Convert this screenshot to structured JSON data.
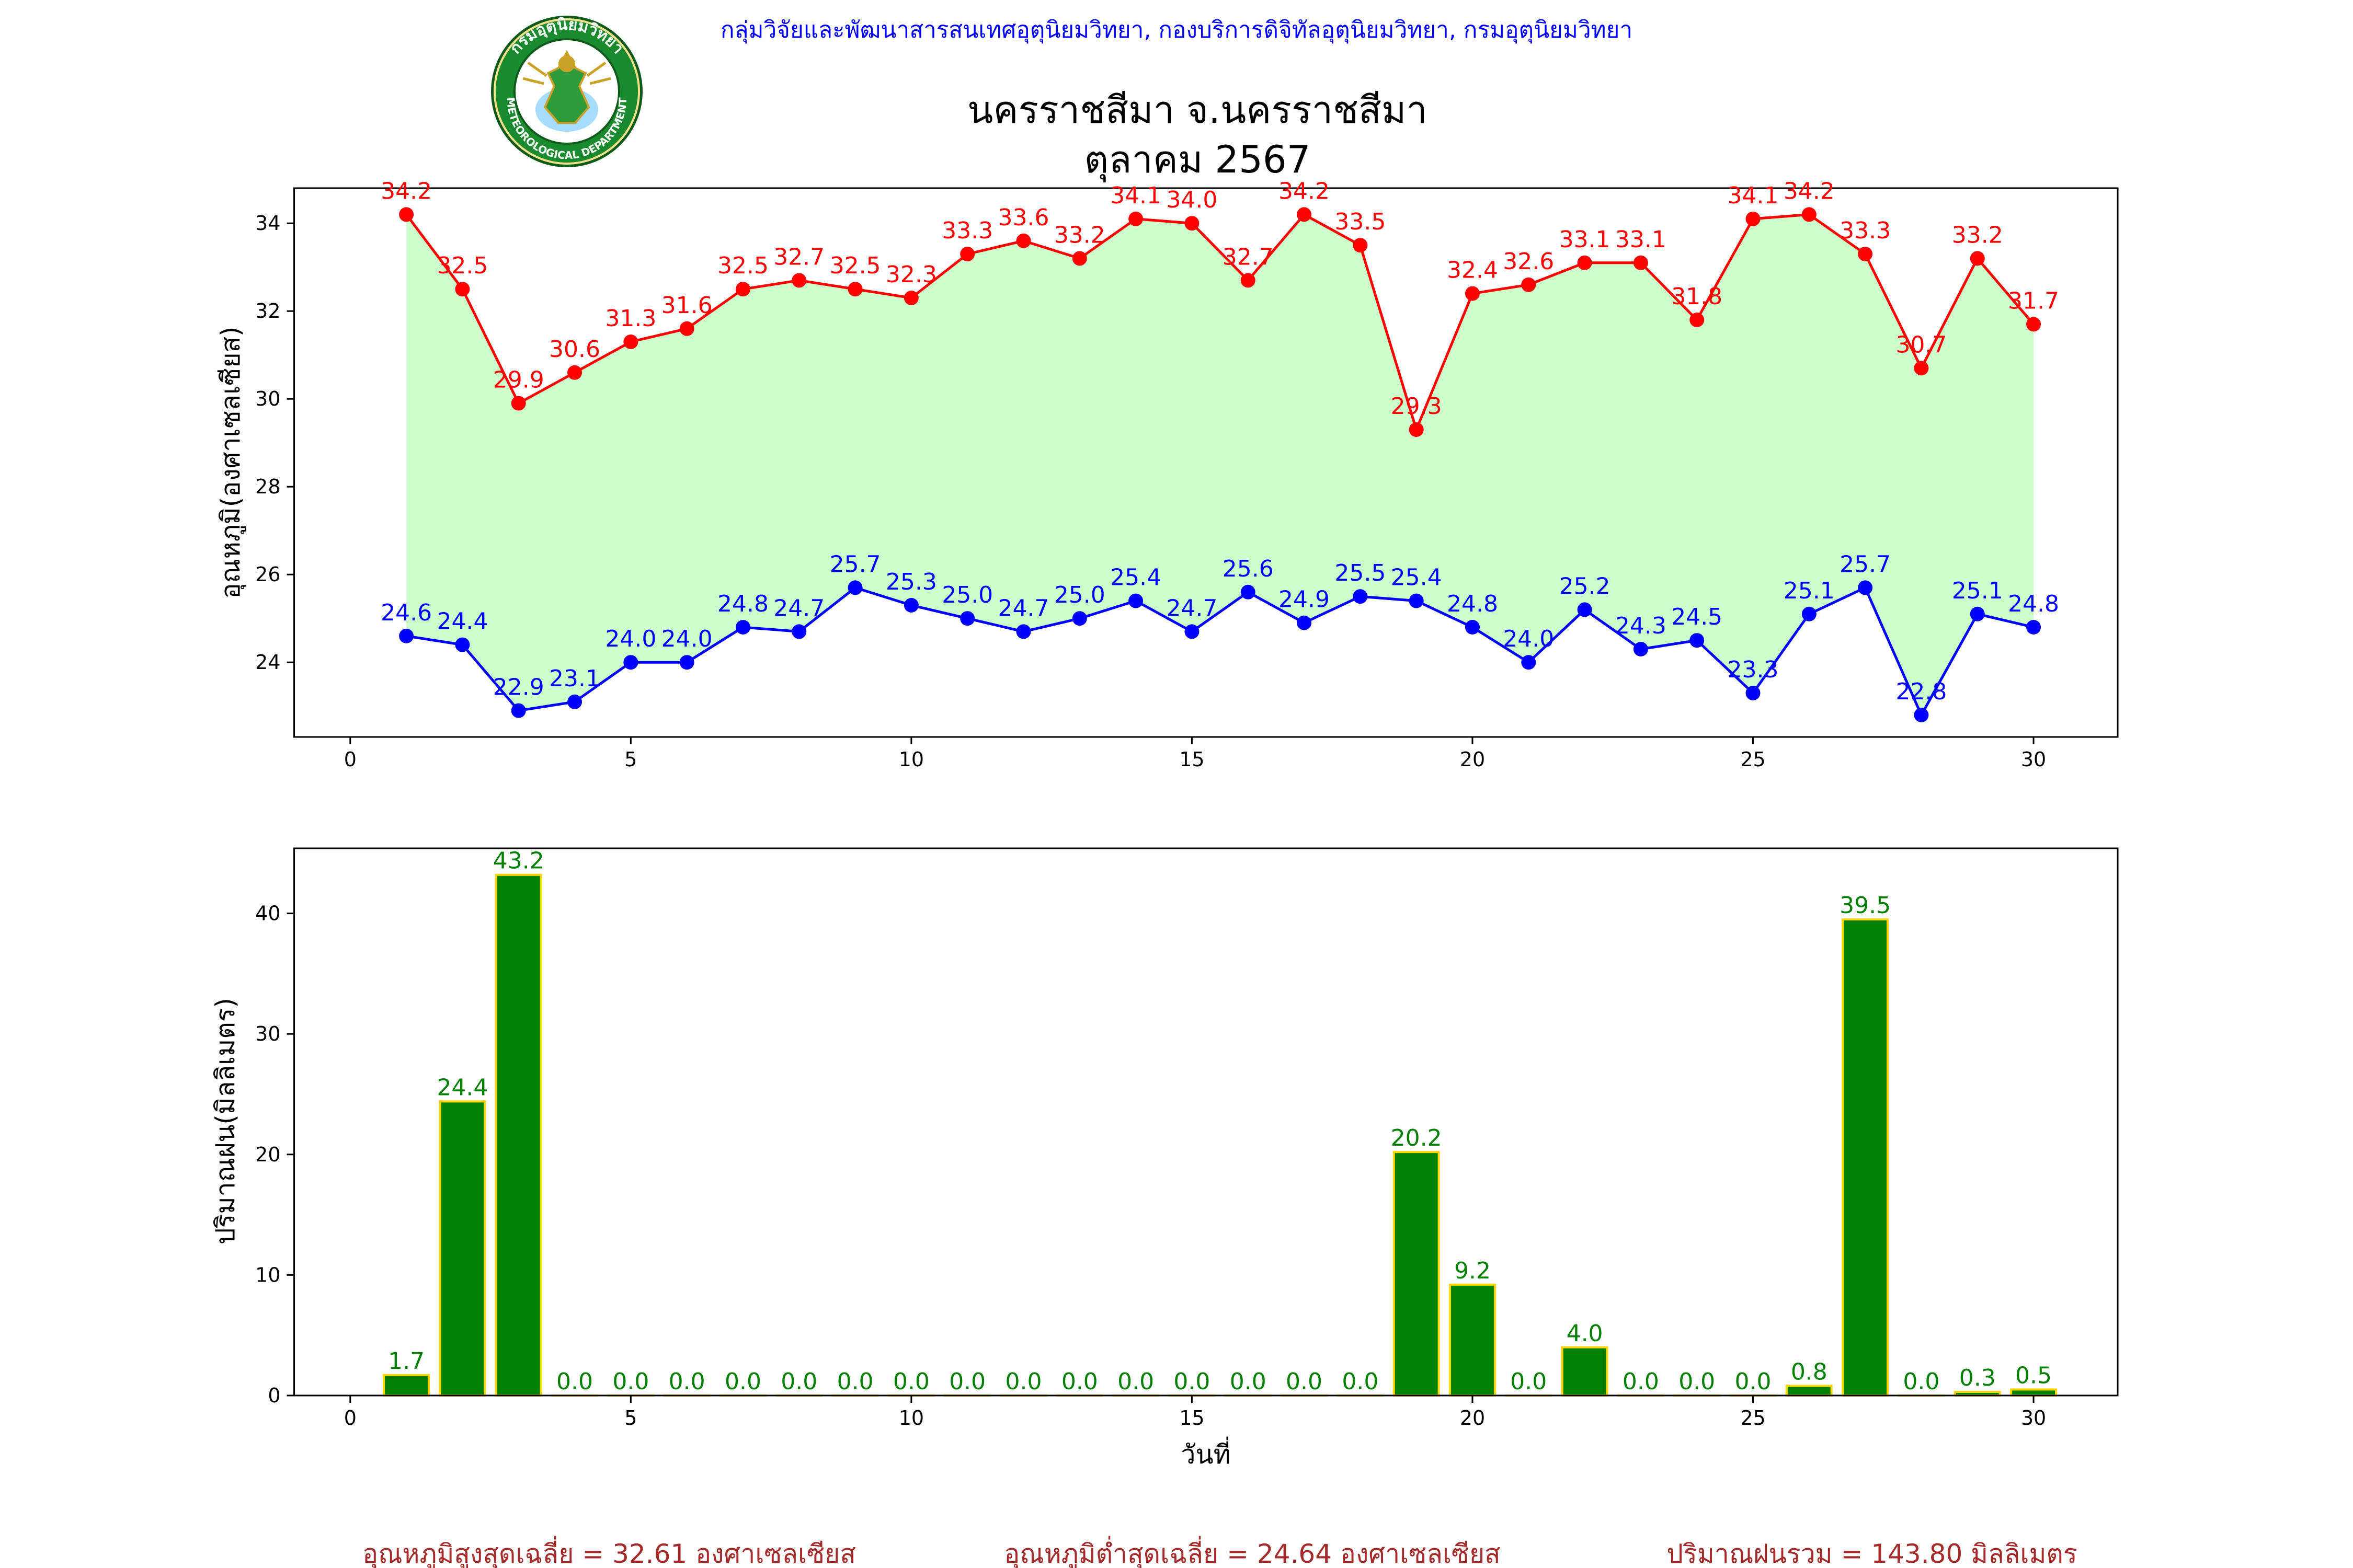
{
  "header": {
    "department_text": "กลุ่มวิจัยและพัฒนาสารสนเทศอุตุนิยมวิทยา, กองบริการดิจิทัลอุตุนิยมวิทยา, กรมอุตุนิยมวิทยา",
    "station": "นครราชสีมา จ.นครราชสีมา",
    "month": "ตุลาคม 2567",
    "logo_text_top": "กรมอุตุนิยมวิทยา",
    "logo_text_bottom": "METEOROLOGICAL DEPARTMENT"
  },
  "colors": {
    "max_line": "#ff0000",
    "min_line": "#0000ff",
    "fill": "#ccffcc",
    "rain_bar": "#008000",
    "rain_edge": "#ffd700",
    "rain_label": "#008000",
    "department_text": "#0000ff",
    "summary_text": "#a52a2a"
  },
  "chart_data": [
    {
      "type": "line",
      "title": "",
      "xlabel": "",
      "ylabel": "อุณหภูมิ(องศาเซลเซียส)",
      "xlim": [
        -1,
        31.5
      ],
      "ylim": [
        22.3,
        34.8
      ],
      "xticks": [
        0,
        5,
        10,
        15,
        20,
        25,
        30
      ],
      "yticks": [
        24,
        26,
        28,
        30,
        32,
        34
      ],
      "x": [
        1,
        2,
        3,
        4,
        5,
        6,
        7,
        8,
        9,
        10,
        11,
        12,
        13,
        14,
        15,
        16,
        17,
        18,
        19,
        20,
        21,
        22,
        23,
        24,
        25,
        26,
        27,
        28,
        29,
        30
      ],
      "fill_between": true,
      "series": [
        {
          "key": "max",
          "values": [
            34.2,
            32.5,
            29.9,
            30.6,
            31.3,
            31.6,
            32.5,
            32.7,
            32.5,
            32.3,
            33.3,
            33.6,
            33.2,
            34.1,
            34.0,
            32.7,
            34.2,
            33.5,
            29.3,
            32.4,
            32.6,
            33.1,
            33.1,
            31.8,
            34.1,
            34.2,
            33.3,
            30.7,
            33.2,
            31.7
          ]
        },
        {
          "key": "min",
          "values": [
            24.6,
            24.4,
            22.9,
            23.1,
            24.0,
            24.0,
            24.8,
            24.7,
            25.7,
            25.3,
            25.0,
            24.7,
            25.0,
            25.4,
            24.7,
            25.6,
            24.9,
            25.5,
            25.4,
            24.8,
            24.0,
            25.2,
            24.3,
            24.5,
            23.3,
            25.1,
            25.7,
            22.8,
            25.1,
            24.8
          ]
        }
      ]
    },
    {
      "type": "bar",
      "title": "",
      "xlabel": "วันที่",
      "ylabel": "ปริมาณฝน(มิลลิเมตร)",
      "xlim": [
        -1,
        31.5
      ],
      "ylim": [
        0,
        45.4
      ],
      "xticks": [
        0,
        5,
        10,
        15,
        20,
        25,
        30
      ],
      "yticks": [
        0,
        10,
        20,
        30,
        40
      ],
      "x": [
        1,
        2,
        3,
        4,
        5,
        6,
        7,
        8,
        9,
        10,
        11,
        12,
        13,
        14,
        15,
        16,
        17,
        18,
        19,
        20,
        21,
        22,
        23,
        24,
        25,
        26,
        27,
        28,
        29,
        30
      ],
      "values": [
        1.7,
        24.4,
        43.2,
        0.0,
        0.0,
        0.0,
        0.0,
        0.0,
        0.0,
        0.0,
        0.0,
        0.0,
        0.0,
        0.0,
        0.0,
        0.0,
        0.0,
        0.0,
        20.2,
        9.2,
        0.0,
        4.0,
        0.0,
        0.0,
        0.0,
        0.8,
        39.5,
        0.0,
        0.3,
        0.5
      ]
    }
  ],
  "summary": {
    "avg_max": "อุณหภูมิสูงสุดเฉลี่ย = 32.61 องศาเซลเซียส",
    "avg_min": "อุณหภูมิต่ำสุดเฉลี่ย = 24.64 องศาเซลเซียส",
    "total_rain": "ปริมาณฝนรวม = 143.80 มิลลิเมตร"
  }
}
